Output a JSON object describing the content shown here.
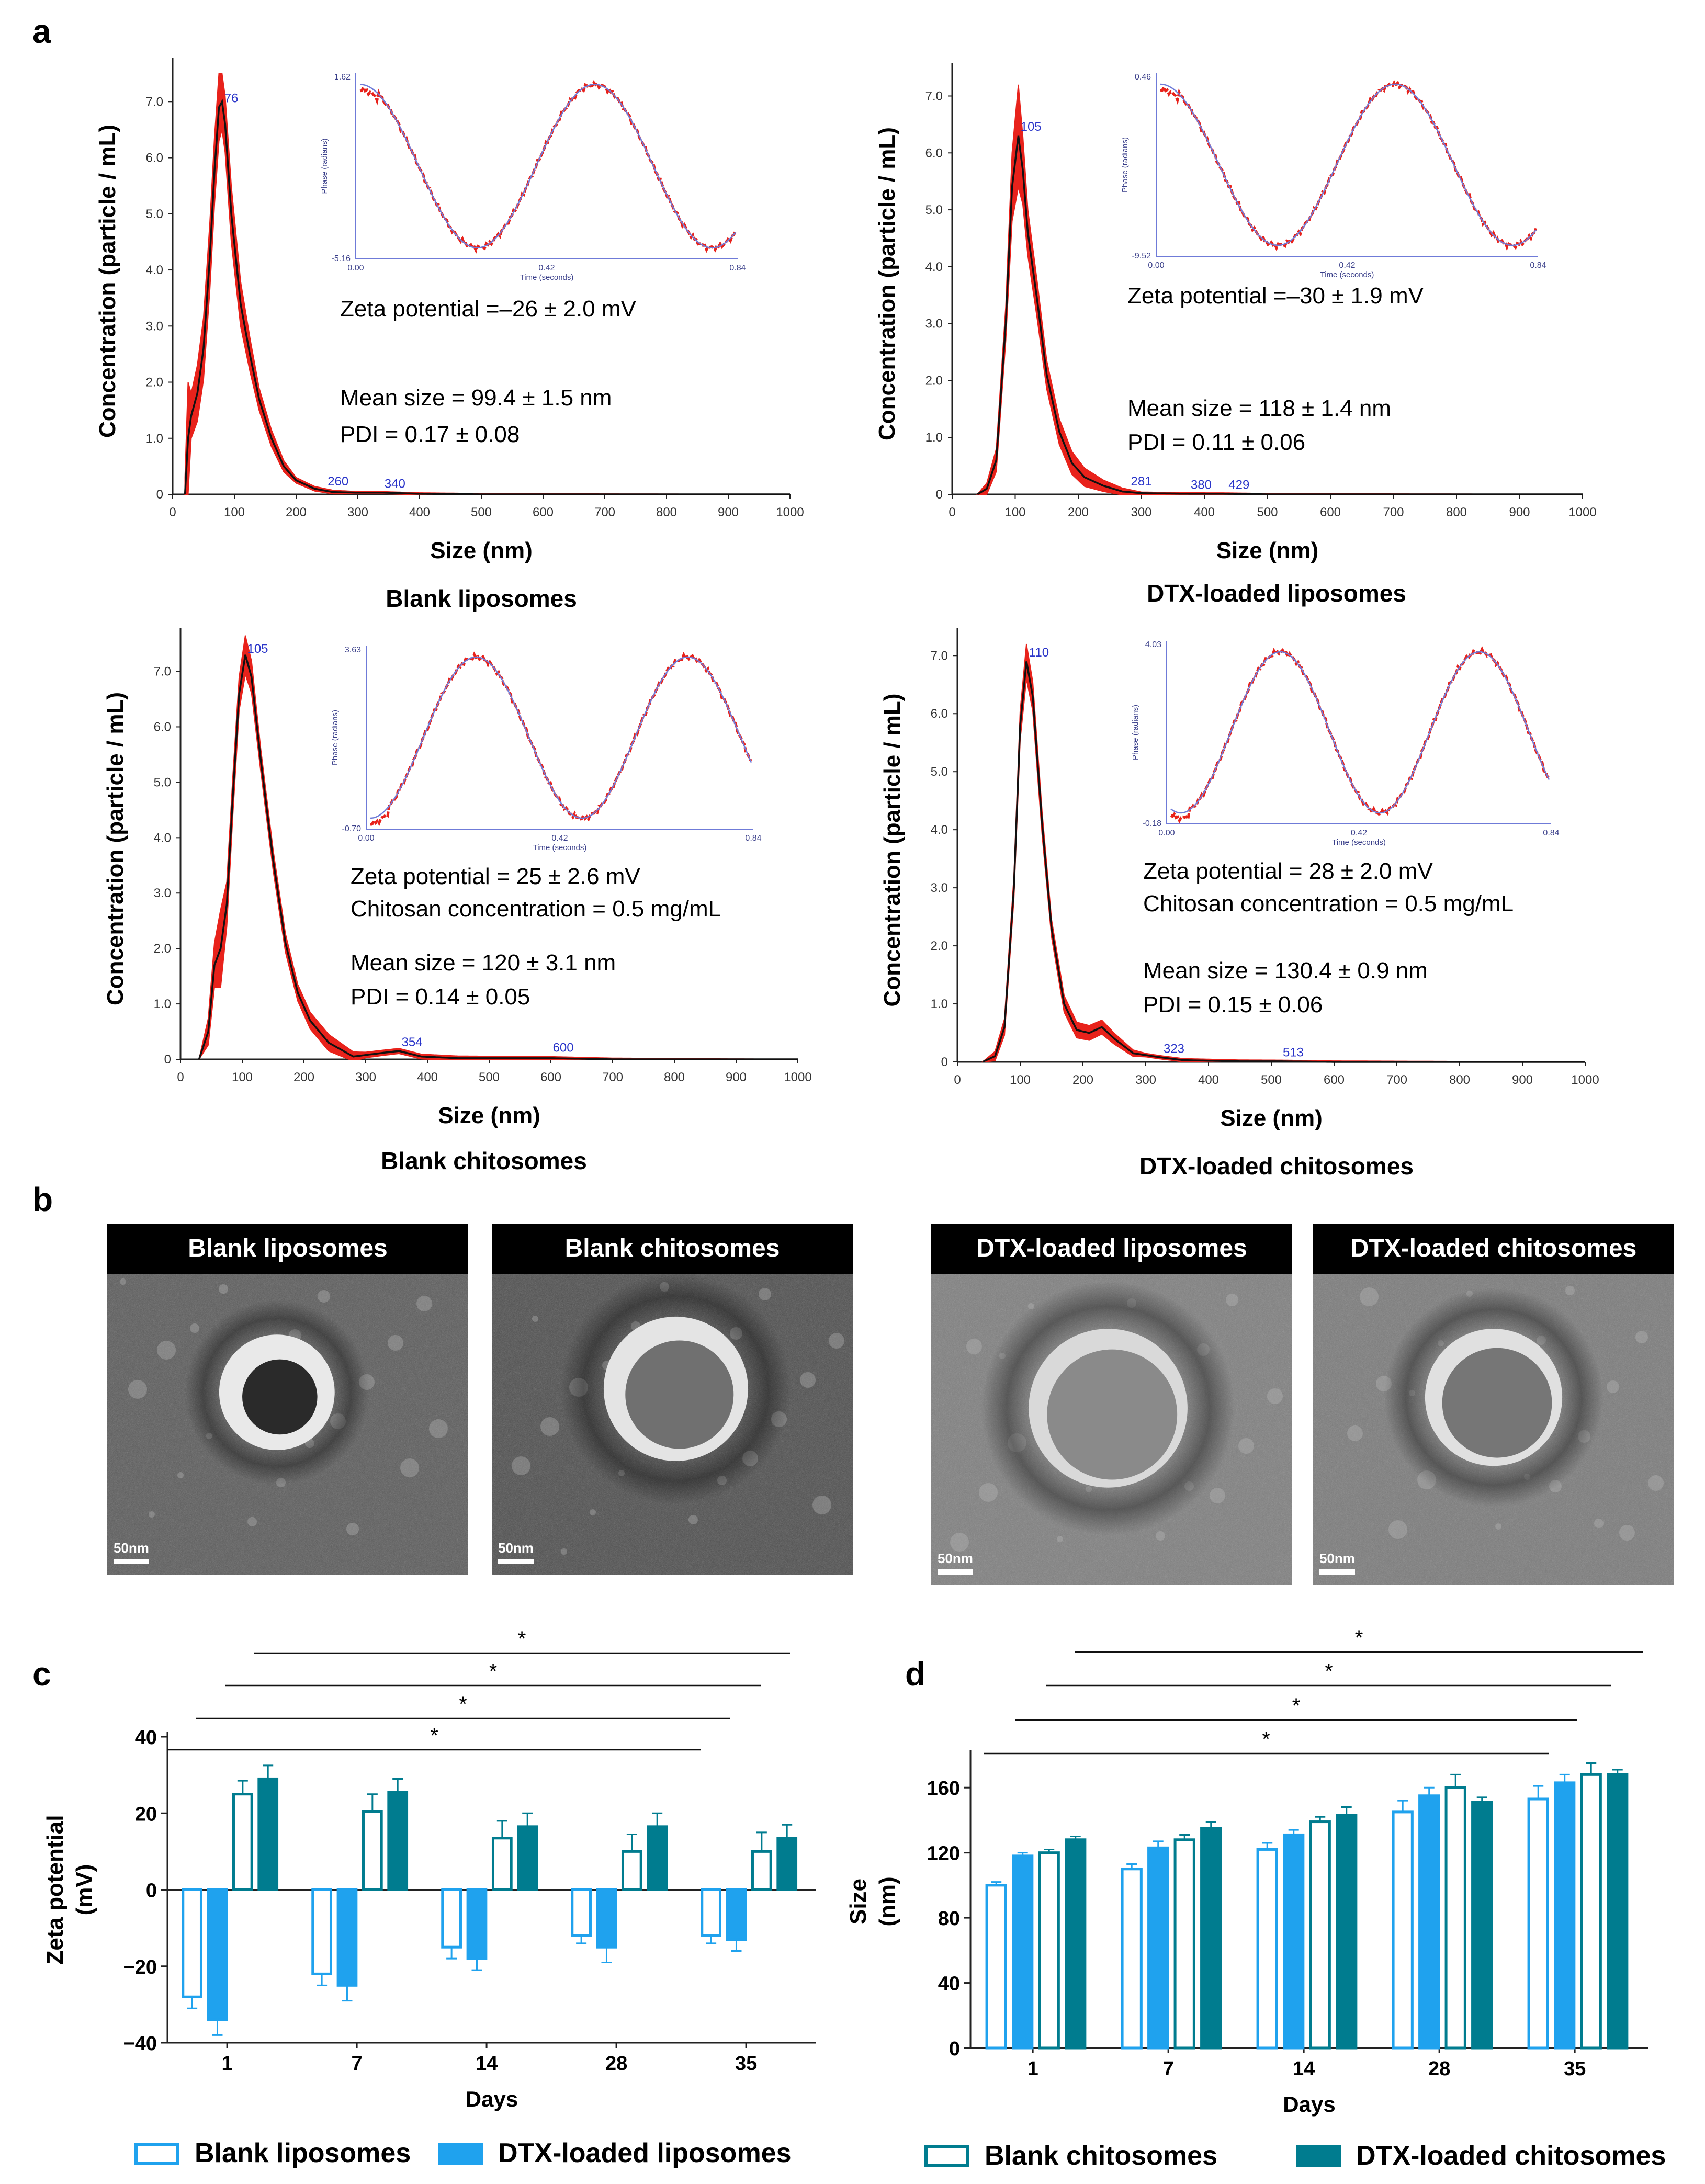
{
  "figure": {
    "panel_labels": [
      "a",
      "b",
      "c",
      "d"
    ]
  },
  "colors": {
    "red": "#e8221b",
    "black": "#111111",
    "blue_label": "#2a35c9",
    "inset_blue": "#6f7bd8",
    "light_blue": "#1fa2ee",
    "teal": "#007c8f",
    "axis": "#222222"
  },
  "chart_data": [
    {
      "id": "nta_blank_liposomes",
      "type": "line",
      "caption": "Blank liposomes",
      "xlabel": "Size (nm)",
      "ylabel": "Concentration (particle / mL)",
      "xlim": [
        0,
        1000
      ],
      "ylim": [
        0,
        7.6
      ],
      "x_ticks": [
        "0",
        "100",
        "200",
        "300",
        "400",
        "500",
        "600",
        "700",
        "800",
        "900",
        "1000"
      ],
      "y_ticks": [
        {
          "v": 0,
          "label": "0"
        },
        {
          "v": 1,
          "label": "1.0"
        },
        {
          "v": 2,
          "label": "2.0"
        },
        {
          "v": 3,
          "label": "3.0"
        },
        {
          "v": 4,
          "label": "4.0"
        },
        {
          "v": 5,
          "label": "5.0"
        },
        {
          "v": 6,
          "label": "6.0"
        },
        {
          "v": 7,
          "label": "7.0"
        }
      ],
      "curve": [
        [
          20,
          0
        ],
        [
          25,
          1.0
        ],
        [
          30,
          1.4
        ],
        [
          40,
          1.8
        ],
        [
          50,
          2.6
        ],
        [
          60,
          4.2
        ],
        [
          68,
          5.8
        ],
        [
          75,
          6.9
        ],
        [
          80,
          7.0
        ],
        [
          85,
          6.6
        ],
        [
          95,
          5.0
        ],
        [
          110,
          3.4
        ],
        [
          125,
          2.5
        ],
        [
          140,
          1.7
        ],
        [
          160,
          1.0
        ],
        [
          180,
          0.5
        ],
        [
          200,
          0.25
        ],
        [
          230,
          0.1
        ],
        [
          260,
          0.04
        ],
        [
          300,
          0.03
        ],
        [
          340,
          0.03
        ],
        [
          400,
          0.01
        ],
        [
          500,
          0
        ],
        [
          1000,
          0
        ]
      ],
      "band": [
        [
          20,
          0.3
        ],
        [
          25,
          1.0
        ],
        [
          30,
          0.4
        ],
        [
          40,
          0.5
        ],
        [
          60,
          0.6
        ],
        [
          75,
          0.6
        ],
        [
          80,
          0.5
        ],
        [
          95,
          0.5
        ],
        [
          110,
          0.4
        ],
        [
          125,
          0.3
        ],
        [
          140,
          0.2
        ],
        [
          160,
          0.15
        ],
        [
          200,
          0.05
        ],
        [
          300,
          0.02
        ],
        [
          1000,
          0
        ]
      ],
      "peak_labels": [
        {
          "x": 95,
          "y": 6.95,
          "text": "76"
        },
        {
          "x": 268,
          "y": 0.12,
          "text": "260"
        },
        {
          "x": 360,
          "y": 0.08,
          "text": "340"
        }
      ],
      "inset": {
        "type": "line",
        "ylabel": "Phase (radians)",
        "xlabel": "Time (seconds)",
        "y_max": "1.62",
        "y_min": "-5.16",
        "x_ticks": [
          "0.00",
          "0.42",
          "0.84"
        ],
        "phase": 0.25,
        "periods": 1.6
      },
      "annotations": [
        "Zeta potential =–26 ± 2.0 mV",
        "Mean size = 99.4 ± 1.5 nm",
        "PDI = 0.17 ± 0.08"
      ]
    },
    {
      "id": "nta_dtx_liposomes",
      "type": "line",
      "caption": "DTX-loaded liposomes",
      "xlabel": "Size (nm)",
      "ylabel": "Concentration (particle / mL)",
      "xlim": [
        0,
        1000
      ],
      "ylim": [
        0,
        7.4
      ],
      "x_ticks": [
        "0",
        "100",
        "200",
        "300",
        "400",
        "500",
        "600",
        "700",
        "800",
        "900",
        "1000"
      ],
      "y_ticks": [
        {
          "v": 0,
          "label": "0"
        },
        {
          "v": 1,
          "label": "1.0"
        },
        {
          "v": 2,
          "label": "2.0"
        },
        {
          "v": 3,
          "label": "3.0"
        },
        {
          "v": 4,
          "label": "4.0"
        },
        {
          "v": 5,
          "label": "5.0"
        },
        {
          "v": 6,
          "label": "6.0"
        },
        {
          "v": 7,
          "label": "7.0"
        }
      ],
      "curve": [
        [
          40,
          0
        ],
        [
          55,
          0.1
        ],
        [
          70,
          0.6
        ],
        [
          85,
          3.0
        ],
        [
          95,
          5.4
        ],
        [
          105,
          6.3
        ],
        [
          112,
          5.7
        ],
        [
          120,
          4.6
        ],
        [
          135,
          3.4
        ],
        [
          150,
          2.1
        ],
        [
          170,
          1.1
        ],
        [
          190,
          0.55
        ],
        [
          210,
          0.3
        ],
        [
          240,
          0.15
        ],
        [
          270,
          0.05
        ],
        [
          300,
          0.02
        ],
        [
          380,
          0.01
        ],
        [
          430,
          0.01
        ],
        [
          500,
          0
        ],
        [
          1000,
          0
        ]
      ],
      "band": [
        [
          40,
          0
        ],
        [
          85,
          0.3
        ],
        [
          95,
          0.6
        ],
        [
          105,
          0.9
        ],
        [
          112,
          0.6
        ],
        [
          120,
          0.4
        ],
        [
          150,
          0.25
        ],
        [
          190,
          0.2
        ],
        [
          240,
          0.1
        ],
        [
          300,
          0.02
        ],
        [
          1000,
          0
        ]
      ],
      "peak_labels": [
        {
          "x": 125,
          "y": 6.35,
          "text": "105"
        },
        {
          "x": 300,
          "y": 0.12,
          "text": "281"
        },
        {
          "x": 395,
          "y": 0.06,
          "text": "380"
        },
        {
          "x": 455,
          "y": 0.06,
          "text": "429"
        }
      ],
      "inset": {
        "type": "line",
        "ylabel": "Phase (radians)",
        "xlabel": "Time (seconds)",
        "y_max": "0.46",
        "y_min": "-9.52",
        "x_ticks": [
          "0.00",
          "0.42",
          "0.84"
        ],
        "phase": 0.25,
        "periods": 1.6
      },
      "annotations": [
        "Zeta potential =–30 ± 1.9 mV",
        "Mean size = 118 ± 1.4 nm",
        "PDI = 0.11 ± 0.06"
      ]
    },
    {
      "id": "nta_blank_chitosomes",
      "type": "line",
      "caption": "Blank chitosomes",
      "xlabel": "Size (nm)",
      "ylabel": "Concentration (particle / mL)",
      "xlim": [
        0,
        1000
      ],
      "ylim": [
        0,
        7.6
      ],
      "x_ticks": [
        "0",
        "100",
        "200",
        "300",
        "400",
        "500",
        "600",
        "700",
        "800",
        "900",
        "1000"
      ],
      "y_ticks": [
        {
          "v": 0,
          "label": "0"
        },
        {
          "v": 1,
          "label": "1.0"
        },
        {
          "v": 2,
          "label": "2.0"
        },
        {
          "v": 3,
          "label": "3.0"
        },
        {
          "v": 4,
          "label": "4.0"
        },
        {
          "v": 5,
          "label": "5.0"
        },
        {
          "v": 6,
          "label": "6.0"
        },
        {
          "v": 7,
          "label": "7.0"
        }
      ],
      "curve": [
        [
          30,
          0
        ],
        [
          45,
          0.5
        ],
        [
          55,
          1.7
        ],
        [
          65,
          2.0
        ],
        [
          75,
          2.8
        ],
        [
          85,
          4.8
        ],
        [
          95,
          6.6
        ],
        [
          105,
          7.3
        ],
        [
          115,
          6.9
        ],
        [
          130,
          5.4
        ],
        [
          150,
          3.6
        ],
        [
          170,
          2.1
        ],
        [
          190,
          1.2
        ],
        [
          210,
          0.7
        ],
        [
          240,
          0.3
        ],
        [
          280,
          0.05
        ],
        [
          330,
          0.12
        ],
        [
          354,
          0.15
        ],
        [
          390,
          0.05
        ],
        [
          450,
          0.02
        ],
        [
          600,
          0.02
        ],
        [
          700,
          0
        ],
        [
          1000,
          0
        ]
      ],
      "band": [
        [
          30,
          0
        ],
        [
          55,
          0.4
        ],
        [
          65,
          0.7
        ],
        [
          75,
          0.4
        ],
        [
          95,
          0.3
        ],
        [
          105,
          0.35
        ],
        [
          130,
          0.2
        ],
        [
          190,
          0.15
        ],
        [
          240,
          0.15
        ],
        [
          300,
          0.05
        ],
        [
          1000,
          0
        ]
      ],
      "peak_labels": [
        {
          "x": 125,
          "y": 7.3,
          "text": "105"
        },
        {
          "x": 375,
          "y": 0.2,
          "text": "354"
        },
        {
          "x": 620,
          "y": 0.1,
          "text": "600"
        }
      ],
      "inset": {
        "type": "line",
        "ylabel": "Phase (radians)",
        "xlabel": "Time (seconds)",
        "y_max": "3.63",
        "y_min": "-0.70",
        "x_ticks": [
          "0.00",
          "0.42",
          "0.84"
        ],
        "phase": 0.75,
        "periods": 1.8
      },
      "annotations": [
        "Zeta potential = 25 ± 2.6 mV",
        "Chitosan concentration = 0.5 mg/mL",
        "Mean size = 120 ± 3.1 nm",
        "PDI = 0.14 ± 0.05"
      ]
    },
    {
      "id": "nta_dtx_chitosomes",
      "type": "line",
      "caption": "DTX-loaded chitosomes",
      "xlabel": "Size (nm)",
      "ylabel": "Concentration (particle / mL)",
      "xlim": [
        0,
        1000
      ],
      "ylim": [
        0,
        7.3
      ],
      "x_ticks": [
        "0",
        "100",
        "200",
        "300",
        "400",
        "500",
        "600",
        "700",
        "800",
        "900",
        "1000"
      ],
      "y_ticks": [
        {
          "v": 0,
          "label": "0"
        },
        {
          "v": 1,
          "label": "1.0"
        },
        {
          "v": 2,
          "label": "2.0"
        },
        {
          "v": 3,
          "label": "3.0"
        },
        {
          "v": 4,
          "label": "4.0"
        },
        {
          "v": 5,
          "label": "5.0"
        },
        {
          "v": 6,
          "label": "6.0"
        },
        {
          "v": 7,
          "label": "7.0"
        }
      ],
      "curve": [
        [
          40,
          0
        ],
        [
          60,
          0.1
        ],
        [
          75,
          0.6
        ],
        [
          90,
          3.0
        ],
        [
          100,
          5.8
        ],
        [
          110,
          6.9
        ],
        [
          120,
          6.3
        ],
        [
          135,
          4.1
        ],
        [
          150,
          2.3
        ],
        [
          170,
          1.0
        ],
        [
          190,
          0.55
        ],
        [
          210,
          0.5
        ],
        [
          230,
          0.6
        ],
        [
          250,
          0.4
        ],
        [
          280,
          0.15
        ],
        [
          323,
          0.08
        ],
        [
          360,
          0.03
        ],
        [
          450,
          0.01
        ],
        [
          513,
          0.01
        ],
        [
          600,
          0
        ],
        [
          1000,
          0
        ]
      ],
      "band": [
        [
          40,
          0
        ],
        [
          90,
          0.2
        ],
        [
          110,
          0.3
        ],
        [
          120,
          0.25
        ],
        [
          150,
          0.15
        ],
        [
          230,
          0.12
        ],
        [
          300,
          0.03
        ],
        [
          1000,
          0
        ]
      ],
      "peak_labels": [
        {
          "x": 130,
          "y": 6.95,
          "text": "110"
        },
        {
          "x": 345,
          "y": 0.12,
          "text": "323"
        },
        {
          "x": 535,
          "y": 0.06,
          "text": "513"
        }
      ],
      "inset": {
        "type": "line",
        "ylabel": "Phase (radians)",
        "xlabel": "Time (seconds)",
        "y_max": "4.03",
        "y_min": "-0.18",
        "x_ticks": [
          "0.00",
          "0.42",
          "0.84"
        ],
        "phase": 0.7,
        "periods": 1.9
      },
      "annotations": [
        "Zeta potential = 28 ± 2.0 mV",
        "Chitosan concentration = 0.5 mg/mL",
        "Mean size = 130.4 ± 0.9 nm",
        "PDI = 0.15 ± 0.06"
      ]
    },
    {
      "id": "zeta_stability",
      "type": "bar",
      "xlabel": "Days",
      "ylabel_line1": "Zeta potential",
      "ylabel_line2": "(mV)",
      "categories": [
        "1",
        "7",
        "14",
        "28",
        "35"
      ],
      "ylim": [
        -40,
        40
      ],
      "y_ticks": [
        {
          "v": 40,
          "label": "40"
        },
        {
          "v": 20,
          "label": "20"
        },
        {
          "v": 0,
          "label": "0"
        },
        {
          "v": -20,
          "label": "−20"
        },
        {
          "v": -40,
          "label": "−40"
        }
      ],
      "series": [
        {
          "name": "Blank liposomes",
          "style": "hollow-blue",
          "values": [
            -28,
            -22,
            -15,
            -12,
            -12
          ],
          "errors": [
            3,
            3,
            3,
            2,
            2
          ]
        },
        {
          "name": "DTX-loaded liposomes",
          "style": "filled-blue",
          "values": [
            -34,
            -25,
            -18,
            -15,
            -13
          ],
          "errors": [
            4,
            4,
            3,
            4,
            3
          ]
        },
        {
          "name": "Blank chitosomes",
          "style": "hollow-teal",
          "values": [
            25,
            20.5,
            13.5,
            10,
            10
          ],
          "errors": [
            3.5,
            4.5,
            4.5,
            4.5,
            5
          ]
        },
        {
          "name": "DTX-loaded chitosomes",
          "style": "filled-teal",
          "values": [
            29,
            25.5,
            16.5,
            16.5,
            13.5
          ],
          "errors": [
            3.5,
            3.5,
            3.5,
            3.5,
            3.5
          ]
        }
      ],
      "significance": [
        "*",
        "*",
        "*",
        "*"
      ],
      "legend": [
        "Blank liposomes",
        "DTX-loaded liposomes"
      ]
    },
    {
      "id": "size_stability",
      "type": "bar",
      "xlabel": "Days",
      "ylabel_line1": "Size",
      "ylabel_line2": "(nm)",
      "categories": [
        "1",
        "7",
        "14",
        "28",
        "35"
      ],
      "ylim": [
        0,
        180
      ],
      "y_ticks": [
        {
          "v": 0,
          "label": "0"
        },
        {
          "v": 40,
          "label": "40"
        },
        {
          "v": 80,
          "label": "80"
        },
        {
          "v": 120,
          "label": "120"
        },
        {
          "v": 160,
          "label": "160"
        }
      ],
      "series": [
        {
          "name": "Blank liposomes",
          "style": "hollow-blue",
          "values": [
            100,
            110,
            122,
            145,
            153
          ],
          "errors": [
            2,
            3,
            4,
            7,
            8
          ]
        },
        {
          "name": "DTX-loaded liposomes",
          "style": "filled-blue",
          "values": [
            118,
            123,
            131,
            155,
            163
          ],
          "errors": [
            2,
            4,
            3,
            5,
            5
          ]
        },
        {
          "name": "Blank chitosomes",
          "style": "hollow-teal",
          "values": [
            120,
            128,
            139,
            160,
            168
          ],
          "errors": [
            2,
            3,
            3,
            8,
            7
          ]
        },
        {
          "name": "DTX-loaded chitosomes",
          "style": "filled-teal",
          "values": [
            128,
            135,
            143,
            151,
            168
          ],
          "errors": [
            2,
            4,
            5,
            3,
            3
          ]
        }
      ],
      "significance": [
        "*",
        "*",
        "*",
        "*"
      ],
      "legend": [
        "Blank chitosomes",
        "DTX-loaded chitosomes"
      ]
    }
  ],
  "tem_images": [
    {
      "title": "Blank liposomes",
      "scale": "50nm",
      "shade": "#5a5a5a",
      "ring": "#e9e9e9",
      "inner": "#2a2a2a"
    },
    {
      "title": "Blank chitosomes",
      "scale": "50nm",
      "shade": "#4d4d4d",
      "ring": "#e4e4e4",
      "inner": "#707070"
    },
    {
      "title": "DTX-loaded liposomes",
      "scale": "50nm",
      "shade": "#7e7e7e",
      "ring": "#d9d9d9",
      "inner": "#8a8a8a"
    },
    {
      "title": "DTX-loaded chitosomes",
      "scale": "50nm",
      "shade": "#7a7a7a",
      "ring": "#e0e0e0",
      "inner": "#767676"
    }
  ]
}
